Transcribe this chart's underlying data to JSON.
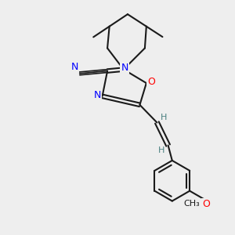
{
  "background_color": "#eeeeee",
  "bond_color": "#1a1a1a",
  "N_color": "#0000ff",
  "O_color": "#ff0000",
  "H_color": "#4a8080",
  "figsize": [
    3.0,
    3.0
  ],
  "dpi": 100,
  "xlim": [
    -1.8,
    1.8
  ],
  "ylim": [
    -2.8,
    1.8
  ]
}
